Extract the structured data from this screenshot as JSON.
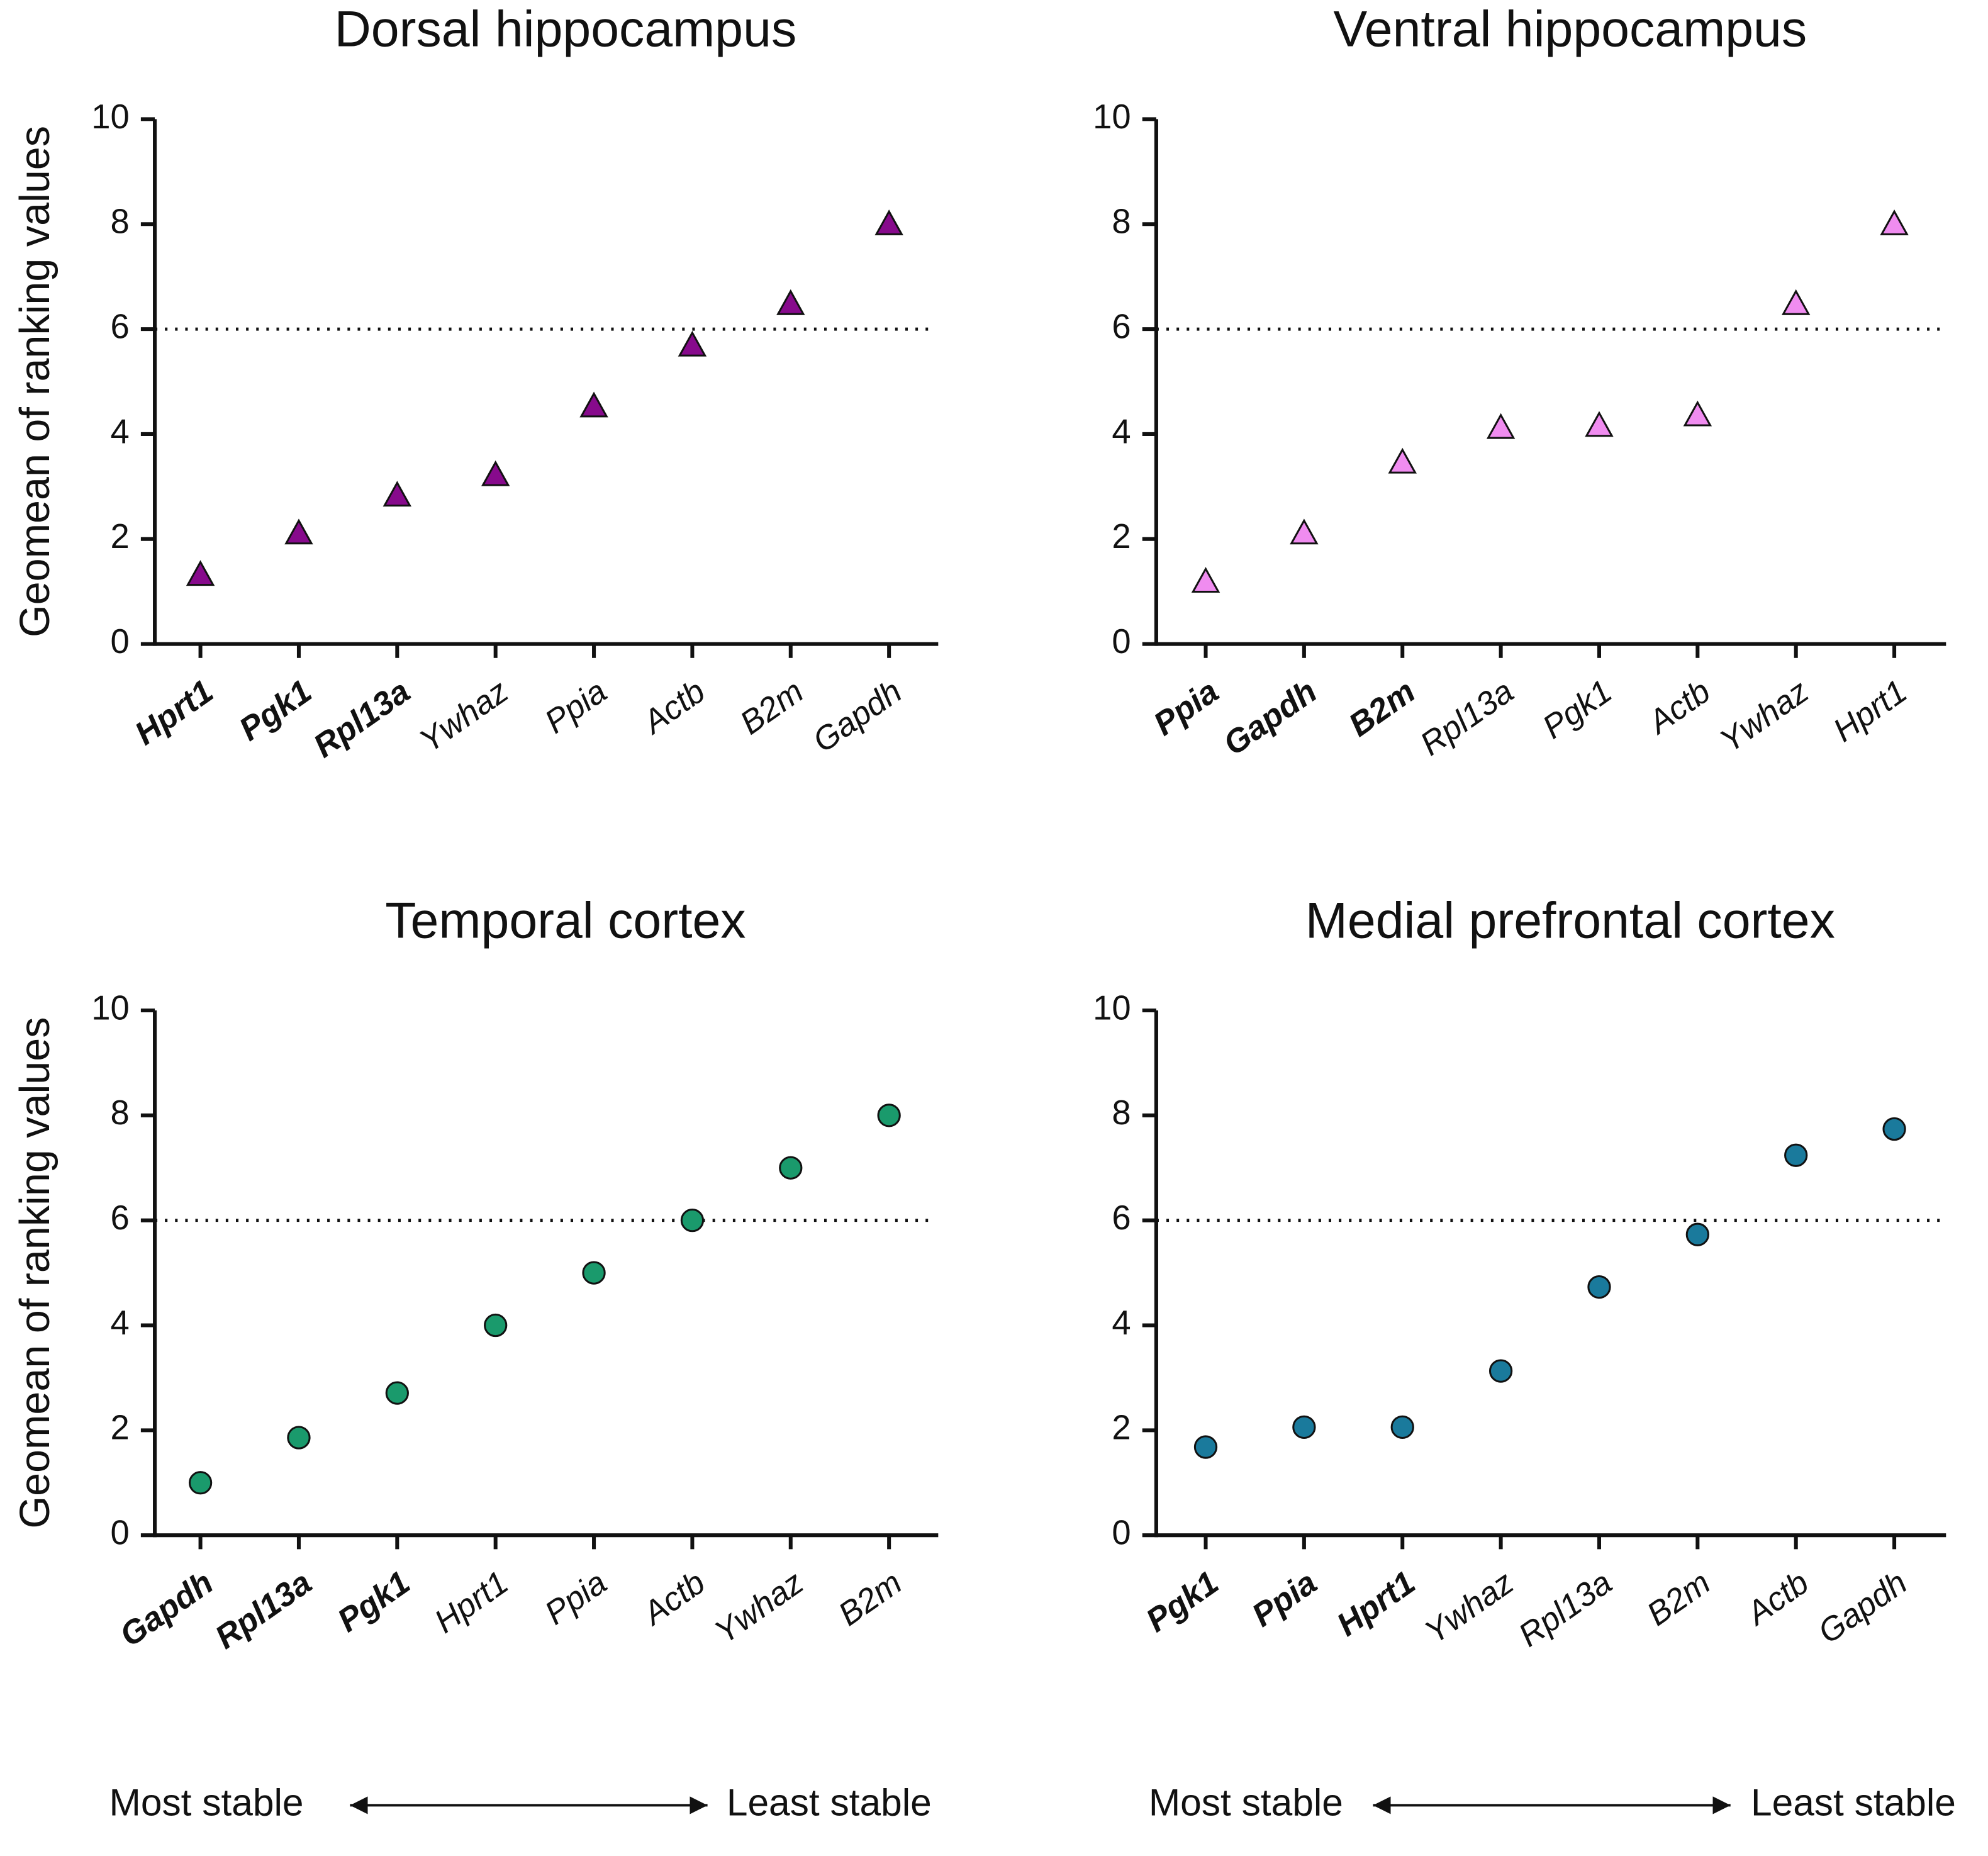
{
  "chart_data": [
    {
      "type": "scatter",
      "title": "Dorsal hippocampus",
      "ylabel": "Geomean of ranking values",
      "categories": [
        "Hprt1",
        "Pgk1",
        "Rpl13a",
        "Ywhaz",
        "Ppia",
        "Actb",
        "B2m",
        "Gapdh"
      ],
      "bold": [
        true,
        true,
        true,
        false,
        false,
        false,
        false,
        false
      ],
      "values": [
        1.32,
        2.11,
        2.83,
        3.22,
        4.53,
        5.69,
        6.48,
        8
      ],
      "marker": "triangle",
      "color": "#870a8c",
      "ylim": [
        0,
        10
      ],
      "yticks": [
        0,
        2,
        4,
        6,
        8,
        10
      ],
      "reference_line": 6
    },
    {
      "type": "scatter",
      "title": "Ventral hippocampus",
      "categories": [
        "Ppia",
        "Gapdh",
        "B2m",
        "Rpl13a",
        "Pgk1",
        "Actb",
        "Ywhaz",
        "Hprt1"
      ],
      "bold": [
        true,
        true,
        true,
        false,
        false,
        false,
        false,
        false
      ],
      "values": [
        1.19,
        2.11,
        3.46,
        4.12,
        4.16,
        4.36,
        6.48,
        8
      ],
      "marker": "triangle",
      "color": "#f08cf0",
      "ylim": [
        0,
        10
      ],
      "yticks": [
        0,
        2,
        4,
        6,
        8,
        10
      ],
      "reference_line": 6
    },
    {
      "type": "scatter",
      "title": "Temporal cortex",
      "ylabel": "Geomean of ranking values",
      "categories": [
        "Gapdh",
        "Rpl13a",
        "Pgk1",
        "Hprt1",
        "Ppia",
        "Actb",
        "Ywhaz",
        "B2m"
      ],
      "bold": [
        true,
        true,
        true,
        false,
        false,
        false,
        false,
        false
      ],
      "values": [
        1,
        1.86,
        2.71,
        4,
        5,
        6,
        7,
        8
      ],
      "marker": "circle",
      "color": "#1a9a6c",
      "ylim": [
        0,
        10
      ],
      "yticks": [
        0,
        2,
        4,
        6,
        8,
        10
      ],
      "reference_line": 6,
      "annotation_left": "Most stable",
      "annotation_right": "Least stable"
    },
    {
      "type": "scatter",
      "title": "Medial prefrontal cortex",
      "categories": [
        "Pgk1",
        "Ppia",
        "Hprt1",
        "Ywhaz",
        "Rpl13a",
        "B2m",
        "Actb",
        "Gapdh"
      ],
      "bold": [
        true,
        true,
        true,
        false,
        false,
        false,
        false,
        false
      ],
      "values": [
        1.68,
        2.06,
        2.06,
        3.13,
        4.73,
        5.73,
        7.24,
        7.74
      ],
      "marker": "circle",
      "color": "#1a7a9c",
      "ylim": [
        0,
        10
      ],
      "yticks": [
        0,
        2,
        4,
        6,
        8,
        10
      ],
      "reference_line": 6,
      "annotation_left": "Most stable",
      "annotation_right": "Least stable"
    }
  ]
}
